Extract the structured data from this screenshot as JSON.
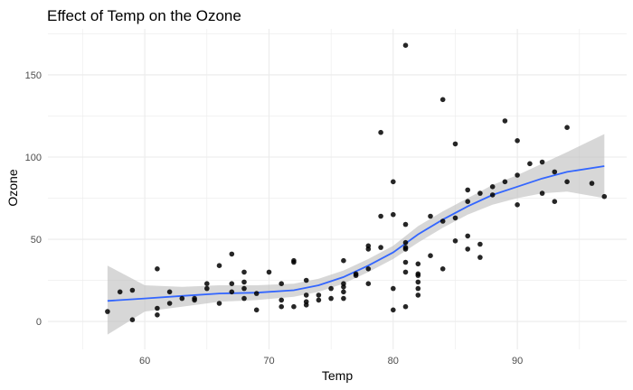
{
  "chart_data": {
    "type": "scatter",
    "title": "Effect of Temp on the Ozone",
    "xlabel": "Temp",
    "ylabel": "Ozone",
    "xlim": [
      52.2,
      98.8
    ],
    "ylim": [
      -17,
      178
    ],
    "x_ticks": [
      60,
      70,
      80,
      90
    ],
    "y_ticks": [
      0,
      50,
      100,
      150
    ],
    "x_tick_labels": [
      "60",
      "70",
      "80",
      "90"
    ],
    "y_tick_labels": [
      "0",
      "50",
      "100",
      "150"
    ],
    "grid": true,
    "colors": {
      "points": "#000000",
      "smooth_line": "#3366FF",
      "confidence_band": "#bdbdbd",
      "grid": "#ebebeb"
    },
    "points": [
      [
        57,
        6
      ],
      [
        58,
        18
      ],
      [
        59,
        19
      ],
      [
        59,
        1
      ],
      [
        61,
        32
      ],
      [
        61,
        8
      ],
      [
        61,
        4
      ],
      [
        62,
        18
      ],
      [
        62,
        11
      ],
      [
        63,
        14
      ],
      [
        64,
        14
      ],
      [
        64,
        13
      ],
      [
        65,
        23
      ],
      [
        65,
        20
      ],
      [
        66,
        34
      ],
      [
        66,
        11
      ],
      [
        67,
        41
      ],
      [
        67,
        23
      ],
      [
        67,
        18
      ],
      [
        68,
        30
      ],
      [
        68,
        24
      ],
      [
        68,
        20
      ],
      [
        68,
        14
      ],
      [
        69,
        17
      ],
      [
        69,
        7
      ],
      [
        70,
        30
      ],
      [
        71,
        23
      ],
      [
        71,
        13
      ],
      [
        71,
        9
      ],
      [
        72,
        37
      ],
      [
        72,
        36
      ],
      [
        72,
        9
      ],
      [
        73,
        25
      ],
      [
        73,
        16
      ],
      [
        73,
        12
      ],
      [
        73,
        10
      ],
      [
        74,
        16
      ],
      [
        74,
        13
      ],
      [
        75,
        20
      ],
      [
        75,
        14
      ],
      [
        76,
        37
      ],
      [
        76,
        21
      ],
      [
        76,
        23
      ],
      [
        76,
        18
      ],
      [
        76,
        14
      ],
      [
        77,
        28
      ],
      [
        77,
        29
      ],
      [
        78,
        46
      ],
      [
        78,
        44
      ],
      [
        78,
        32
      ],
      [
        78,
        23
      ],
      [
        79,
        115
      ],
      [
        79,
        45
      ],
      [
        79,
        64
      ],
      [
        80,
        85
      ],
      [
        80,
        65
      ],
      [
        80,
        20
      ],
      [
        80,
        7
      ],
      [
        81,
        168
      ],
      [
        81,
        59
      ],
      [
        81,
        48
      ],
      [
        81,
        45
      ],
      [
        81,
        44
      ],
      [
        81,
        36
      ],
      [
        81,
        30
      ],
      [
        81,
        9
      ],
      [
        82,
        35
      ],
      [
        82,
        29
      ],
      [
        82,
        28
      ],
      [
        82,
        24
      ],
      [
        82,
        20
      ],
      [
        82,
        16
      ],
      [
        83,
        64
      ],
      [
        83,
        40
      ],
      [
        84,
        135
      ],
      [
        84,
        61
      ],
      [
        84,
        32
      ],
      [
        85,
        108
      ],
      [
        85,
        63
      ],
      [
        85,
        49
      ],
      [
        86,
        80
      ],
      [
        86,
        73
      ],
      [
        86,
        52
      ],
      [
        86,
        44
      ],
      [
        87,
        78
      ],
      [
        87,
        47
      ],
      [
        87,
        39
      ],
      [
        88,
        82
      ],
      [
        88,
        77
      ],
      [
        89,
        122
      ],
      [
        89,
        85
      ],
      [
        90,
        110
      ],
      [
        90,
        89
      ],
      [
        90,
        71
      ],
      [
        91,
        96
      ],
      [
        92,
        97
      ],
      [
        92,
        78
      ],
      [
        93,
        91
      ],
      [
        93,
        73
      ],
      [
        94,
        118
      ],
      [
        94,
        85
      ],
      [
        96,
        84
      ],
      [
        97,
        76
      ]
    ],
    "smooth": [
      [
        57,
        12.5
      ],
      [
        60,
        14
      ],
      [
        63,
        15.5
      ],
      [
        66,
        17
      ],
      [
        69,
        17.5
      ],
      [
        72,
        19
      ],
      [
        74,
        22
      ],
      [
        76,
        27
      ],
      [
        78,
        34
      ],
      [
        80,
        42
      ],
      [
        82,
        53
      ],
      [
        84,
        62
      ],
      [
        86,
        70
      ],
      [
        88,
        77
      ],
      [
        90,
        82
      ],
      [
        92,
        87
      ],
      [
        94,
        91
      ],
      [
        97,
        94.5
      ]
    ],
    "ci_lower": [
      [
        57,
        -8
      ],
      [
        60,
        6
      ],
      [
        63,
        9
      ],
      [
        66,
        12
      ],
      [
        69,
        13
      ],
      [
        72,
        15
      ],
      [
        74,
        18
      ],
      [
        76,
        23
      ],
      [
        78,
        30
      ],
      [
        80,
        38
      ],
      [
        82,
        48
      ],
      [
        84,
        57
      ],
      [
        86,
        65
      ],
      [
        88,
        71
      ],
      [
        90,
        75
      ],
      [
        92,
        78
      ],
      [
        94,
        79
      ],
      [
        97,
        75
      ]
    ],
    "ci_upper": [
      [
        57,
        34
      ],
      [
        60,
        22
      ],
      [
        63,
        21
      ],
      [
        66,
        22
      ],
      [
        69,
        22
      ],
      [
        72,
        23
      ],
      [
        74,
        26
      ],
      [
        76,
        31
      ],
      [
        78,
        38
      ],
      [
        80,
        46
      ],
      [
        82,
        58
      ],
      [
        84,
        67
      ],
      [
        86,
        75
      ],
      [
        88,
        83
      ],
      [
        90,
        89
      ],
      [
        92,
        96
      ],
      [
        94,
        103
      ],
      [
        97,
        114
      ]
    ]
  }
}
